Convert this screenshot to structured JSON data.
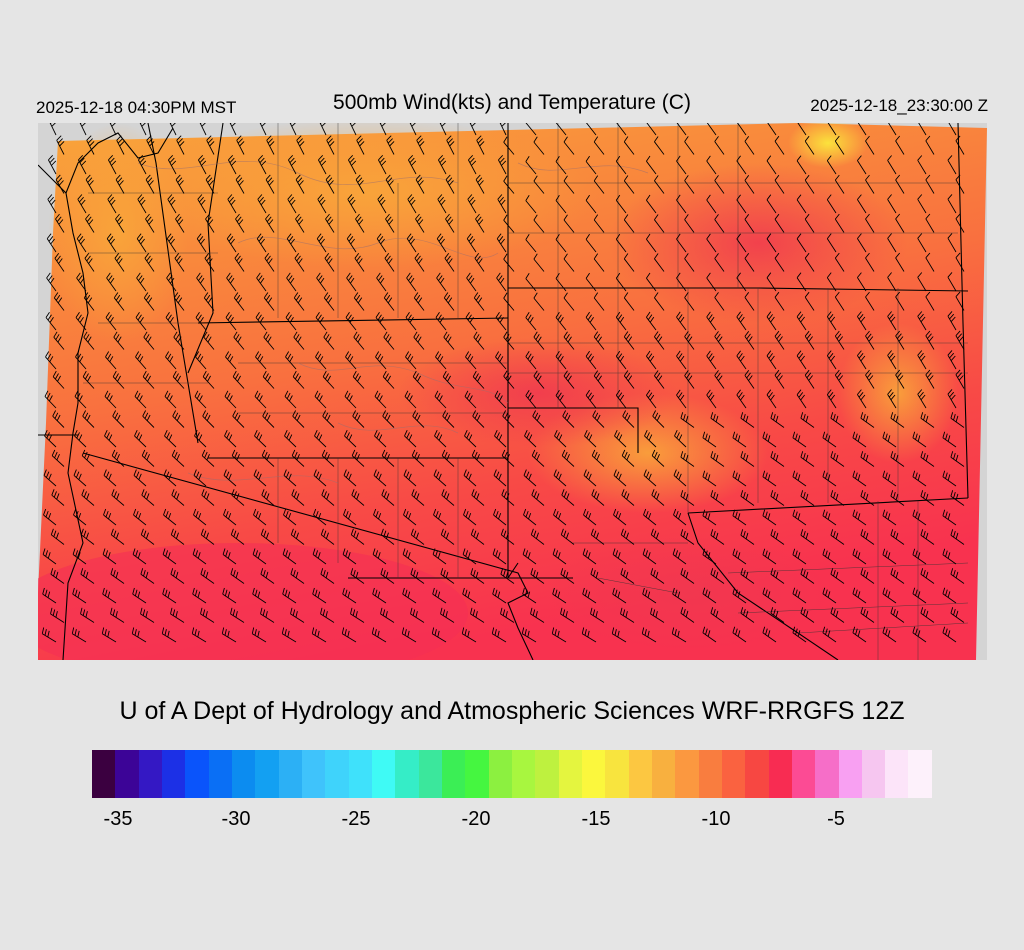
{
  "header": {
    "local_time": "2025-12-18 04:30PM MST",
    "title": "500mb Wind(kts) and Temperature (C)",
    "utc_time": "2025-12-18_23:30:00 Z"
  },
  "footer": {
    "credit": "U of A Dept of Hydrology and Atmospheric Sciences WRF-RRGFS 12Z"
  },
  "colorbar": {
    "colors": [
      "#3b0040",
      "#3c0497",
      "#3418c4",
      "#1c30e6",
      "#0a54fb",
      "#0a6ff5",
      "#0c8cf0",
      "#13a0f2",
      "#2cb0f5",
      "#3fc3fb",
      "#3fd3fb",
      "#3fe1fb",
      "#3ffaf5",
      "#35edc7",
      "#3be79c",
      "#3bee55",
      "#45f640",
      "#8cf040",
      "#a8f63f",
      "#bef13f",
      "#e4f53f",
      "#fbf73d",
      "#f8e43e",
      "#fcc741",
      "#f8b03f",
      "#fb9840",
      "#f97d3f",
      "#fa6240",
      "#f74742",
      "#f82c52",
      "#fc4b94",
      "#f66ec8",
      "#f8a0f2",
      "#f6c6f0",
      "#fce4f9",
      "#fdf1fb"
    ],
    "tick_labels": [
      "-35",
      "-30",
      "-25",
      "-20",
      "-15",
      "-10",
      "-5"
    ]
  },
  "map": {
    "basemap": "western-us-states-counties",
    "wind_barbs": "500mb-wind-barbs-kts",
    "temperature_field": "500mb-temperature-c"
  }
}
